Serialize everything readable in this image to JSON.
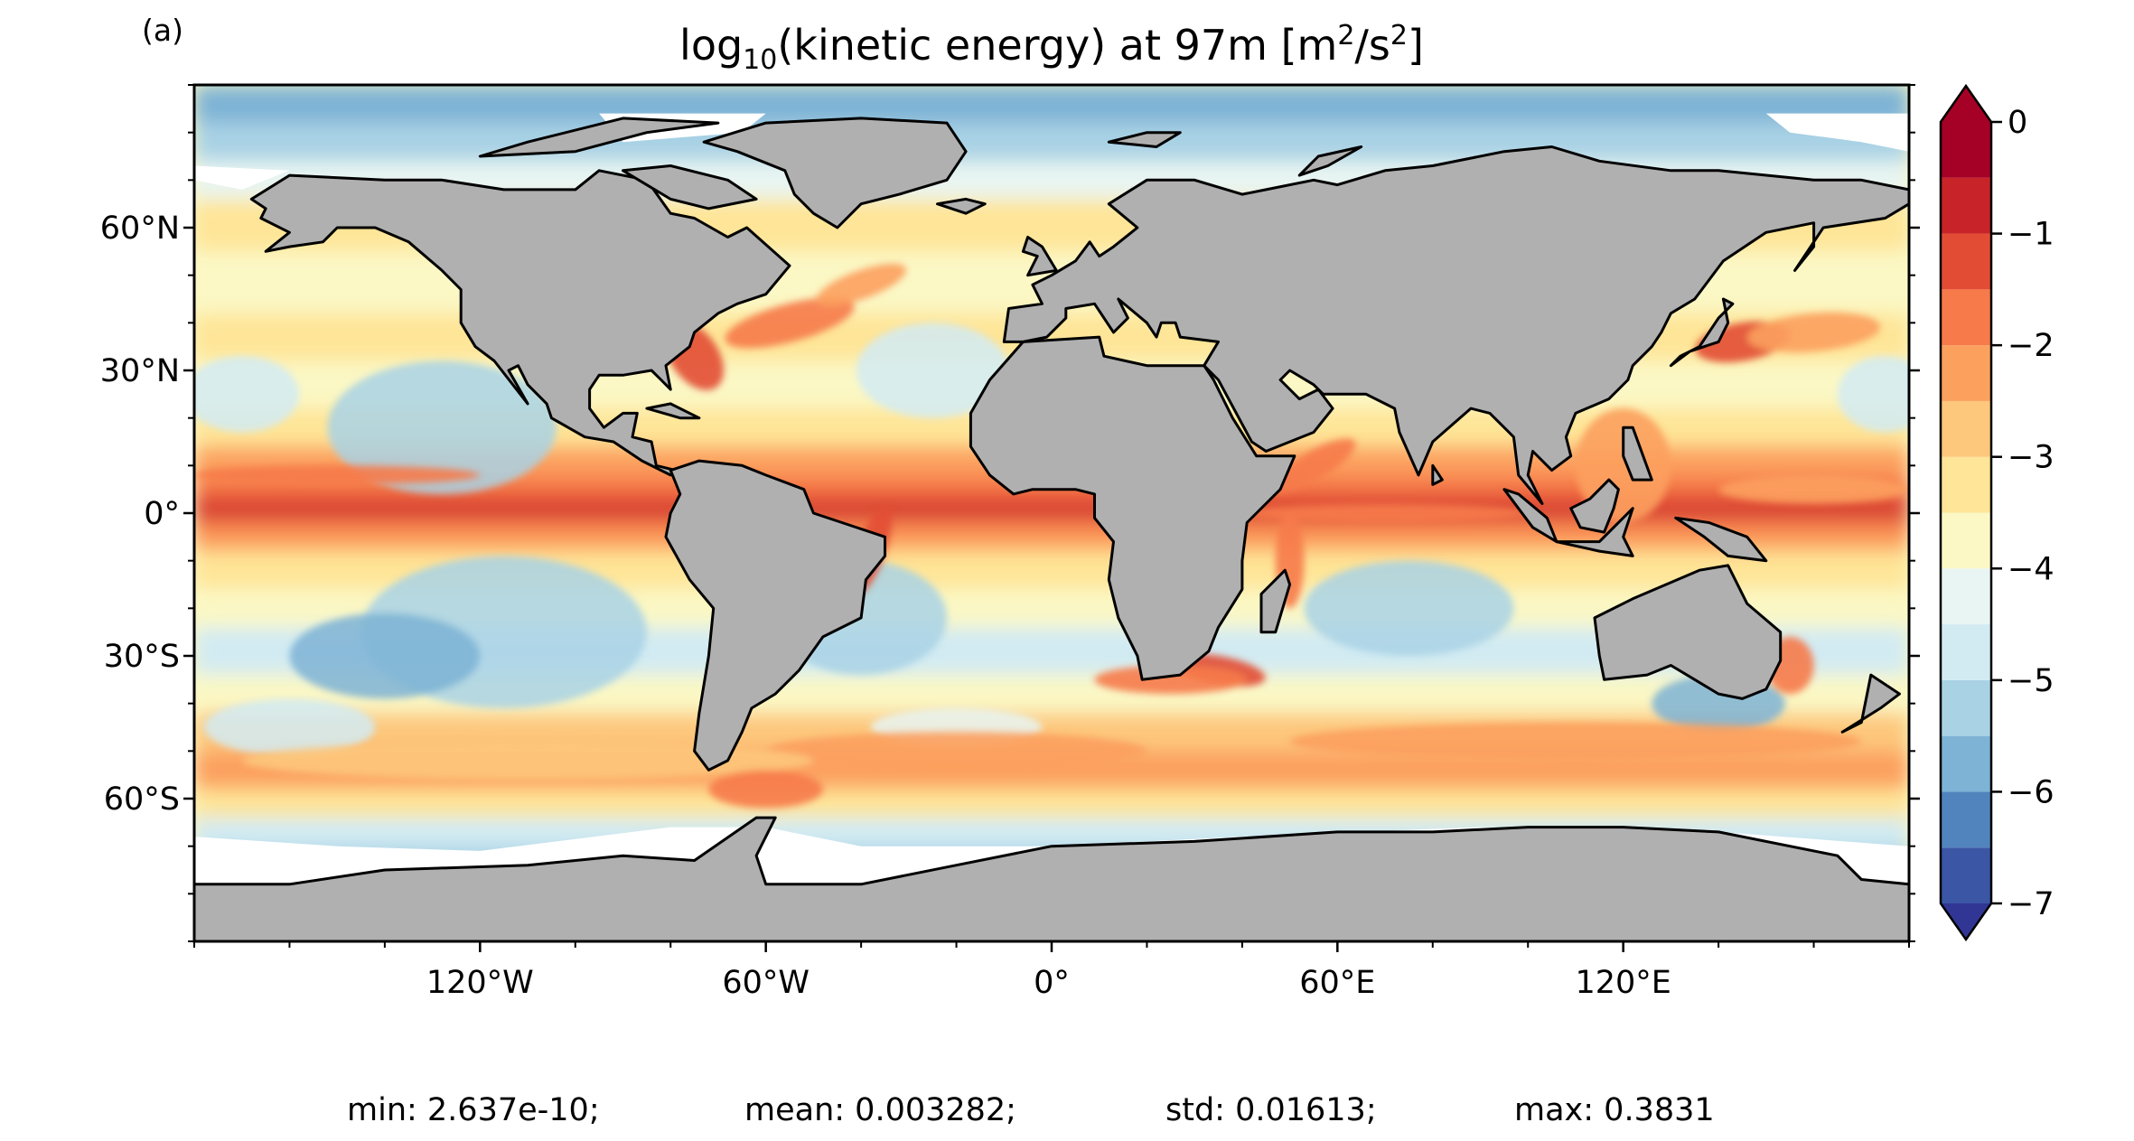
{
  "panel_label": "(a)",
  "title": {
    "prefix": "log",
    "subscript": "10",
    "middle": "(kinetic energy) at 97m [m",
    "sup1": "2",
    "mid2": "/s",
    "sup2": "2",
    "suffix": "]"
  },
  "stats": {
    "min": "min: 2.637e-10;",
    "mean": "mean: 0.003282;",
    "std": "std: 0.01613;",
    "max": "max: 0.3831"
  },
  "colors": {
    "land": "#b0b0b0",
    "coast": "#000000",
    "ice": "#ffffff",
    "scale": [
      "#313695",
      "#4575b4",
      "#74add1",
      "#abd9e9",
      "#e0f3f8",
      "#ffffbf",
      "#fee090",
      "#fdae61",
      "#f46d43",
      "#d73027",
      "#a50026"
    ]
  },
  "chart_data": {
    "type": "heatmap",
    "title": "log10(kinetic energy) at 97m [m2/s2]",
    "projection": "plate carree",
    "xlim": [
      -180,
      180
    ],
    "ylim": [
      -90,
      90
    ],
    "x_ticks": [
      {
        "value": -120,
        "label": "120°W"
      },
      {
        "value": -60,
        "label": "60°W"
      },
      {
        "value": 0,
        "label": "0°"
      },
      {
        "value": 60,
        "label": "60°E"
      },
      {
        "value": 120,
        "label": "120°E"
      }
    ],
    "y_ticks": [
      {
        "value": 60,
        "label": "60°N"
      },
      {
        "value": 30,
        "label": "30°N"
      },
      {
        "value": 0,
        "label": "0°"
      },
      {
        "value": -30,
        "label": "30°S"
      },
      {
        "value": -60,
        "label": "60°S"
      }
    ],
    "colorbar": {
      "range": [
        -7,
        0
      ],
      "extend": "both",
      "levels": [
        -7,
        -6.5,
        -6,
        -5.5,
        -5,
        -4.5,
        -4,
        -3.5,
        -3,
        -2.5,
        -2,
        -1.5,
        -1,
        -0.5,
        0
      ],
      "colors": [
        "#3b56a5",
        "#5184bc",
        "#7eb3d5",
        "#a9d2e5",
        "#d2ebf3",
        "#e8f5f2",
        "#fbf8c5",
        "#fee597",
        "#fdc77c",
        "#fca05e",
        "#f67a4a",
        "#e24c35",
        "#c72329",
        "#a50026"
      ],
      "tick_labels": [
        {
          "value": 0,
          "label": "0"
        },
        {
          "value": -1,
          "label": "−1"
        },
        {
          "value": -2,
          "label": "−2"
        },
        {
          "value": -3,
          "label": "−3"
        },
        {
          "value": -4,
          "label": "−4"
        },
        {
          "value": -5,
          "label": "−5"
        },
        {
          "value": -6,
          "label": "−6"
        },
        {
          "value": -7,
          "label": "−7"
        }
      ]
    },
    "statistics": {
      "min": 2.637e-10,
      "mean": 0.003282,
      "std": 0.01613,
      "max": 0.3831
    }
  }
}
